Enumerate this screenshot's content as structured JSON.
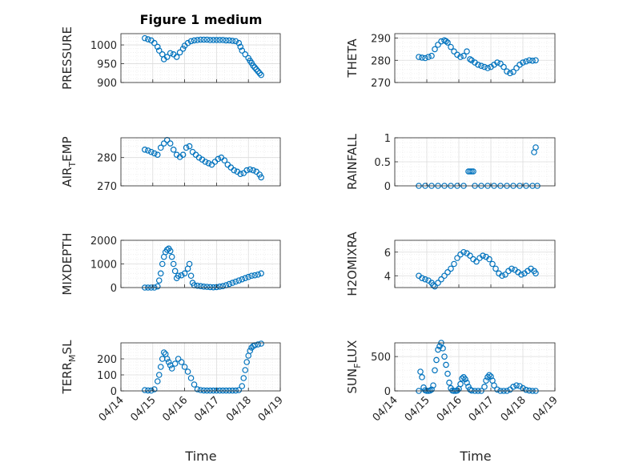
{
  "colors": {
    "marker": "#0072BD",
    "axis": "#262626",
    "grid": "#dcdcdc",
    "minor_grid": "#ececec"
  },
  "chart_data": [
    {
      "type": "scatter",
      "title": "Figure 1 medium",
      "ylabel": "PRESSURE",
      "ylim": [
        900,
        1030
      ],
      "yticks": [
        900,
        950,
        1000
      ],
      "ytick_labels": [
        "900",
        "950",
        "1000"
      ],
      "xlim": [
        0,
        5
      ],
      "x": [
        0.75,
        0.85,
        0.95,
        1.05,
        1.15,
        1.2,
        1.3,
        1.35,
        1.45,
        1.55,
        1.65,
        1.75,
        1.85,
        1.95,
        2.0,
        2.1,
        2.2,
        2.3,
        2.4,
        2.5,
        2.6,
        2.7,
        2.8,
        2.9,
        3.0,
        3.1,
        3.2,
        3.3,
        3.4,
        3.5,
        3.6,
        3.7,
        3.75,
        3.8,
        3.9,
        4.0,
        4.05,
        4.1,
        4.15,
        4.2,
        4.25,
        4.3,
        4.35,
        4.4
      ],
      "y": [
        1018,
        1015,
        1012,
        1005,
        995,
        985,
        975,
        962,
        968,
        978,
        975,
        968,
        980,
        990,
        998,
        1005,
        1010,
        1012,
        1013,
        1014,
        1014,
        1014,
        1013,
        1013,
        1013,
        1013,
        1013,
        1012,
        1012,
        1011,
        1010,
        1005,
        995,
        985,
        975,
        965,
        958,
        952,
        945,
        940,
        935,
        930,
        925,
        920
      ]
    },
    {
      "type": "scatter",
      "ylabel": "THETA",
      "ylim": [
        270,
        292
      ],
      "yticks": [
        270,
        280,
        290
      ],
      "ytick_labels": [
        "270",
        "280",
        "290"
      ],
      "xlim": [
        0,
        5
      ],
      "x": [
        0.75,
        0.85,
        0.95,
        1.05,
        1.15,
        1.25,
        1.35,
        1.45,
        1.55,
        1.6,
        1.65,
        1.75,
        1.85,
        1.95,
        2.05,
        2.15,
        2.25,
        2.35,
        2.4,
        2.5,
        2.6,
        2.7,
        2.8,
        2.9,
        3.0,
        3.1,
        3.2,
        3.3,
        3.4,
        3.5,
        3.6,
        3.7,
        3.8,
        3.9,
        4.0,
        4.1,
        4.2,
        4.3,
        4.4
      ],
      "y": [
        281.5,
        281.2,
        281,
        281.5,
        282,
        285,
        287,
        288.5,
        289,
        288.6,
        288,
        286,
        284,
        282.5,
        281.5,
        282,
        284,
        280.5,
        280,
        279,
        278,
        277.5,
        277,
        276.5,
        277,
        278,
        279,
        278.5,
        277,
        275,
        274.2,
        274.8,
        276.5,
        278,
        279,
        279.5,
        280,
        279.8,
        280
      ]
    },
    {
      "type": "scatter",
      "ylabel": "AIR_TEMP",
      "ylim": [
        270,
        287
      ],
      "yticks": [
        270,
        280
      ],
      "ytick_labels": [
        "270",
        "280"
      ],
      "xlim": [
        0,
        5
      ],
      "x": [
        0.75,
        0.85,
        0.95,
        1.05,
        1.15,
        1.25,
        1.35,
        1.45,
        1.55,
        1.65,
        1.75,
        1.85,
        1.95,
        2.05,
        2.15,
        2.25,
        2.35,
        2.45,
        2.55,
        2.65,
        2.75,
        2.85,
        2.95,
        3.05,
        3.15,
        3.25,
        3.35,
        3.45,
        3.55,
        3.65,
        3.75,
        3.85,
        3.95,
        4.05,
        4.15,
        4.25,
        4.35,
        4.4
      ],
      "y": [
        282.8,
        282.5,
        282,
        281.5,
        281,
        283.5,
        285,
        286.2,
        285,
        282.8,
        281,
        280.2,
        281,
        283.5,
        284,
        282,
        281,
        280,
        279.3,
        278.5,
        278,
        277.5,
        278.5,
        279.5,
        280,
        279,
        277.5,
        276.5,
        275.5,
        275,
        274.2,
        274.5,
        275.5,
        275.8,
        275.5,
        275,
        274,
        273
      ]
    },
    {
      "type": "scatter",
      "ylabel": "RAINFALL",
      "ylim": [
        0,
        1
      ],
      "yticks": [
        0,
        0.5,
        1
      ],
      "ytick_labels": [
        "0",
        "0.5",
        "1"
      ],
      "xlim": [
        0,
        5
      ],
      "x": [
        0.75,
        0.95,
        1.15,
        1.35,
        1.55,
        1.75,
        1.95,
        2.15,
        2.3,
        2.35,
        2.4,
        2.45,
        2.5,
        2.7,
        2.9,
        3.1,
        3.3,
        3.5,
        3.7,
        3.9,
        4.1,
        4.3,
        4.35,
        4.4,
        4.45
      ],
      "y": [
        0,
        0,
        0,
        0,
        0,
        0,
        0,
        0,
        0.3,
        0.3,
        0.3,
        0.3,
        0,
        0,
        0,
        0,
        0,
        0,
        0,
        0,
        0,
        0,
        0.7,
        0.8,
        0
      ]
    },
    {
      "type": "scatter",
      "ylabel": "MIXDEPTH",
      "ylim": [
        0,
        2000
      ],
      "yticks": [
        0,
        1000,
        2000
      ],
      "ytick_labels": [
        "0",
        "1000",
        "2000"
      ],
      "xlim": [
        0,
        5
      ],
      "x": [
        0.75,
        0.85,
        0.95,
        1.05,
        1.15,
        1.2,
        1.25,
        1.3,
        1.35,
        1.4,
        1.45,
        1.5,
        1.55,
        1.6,
        1.65,
        1.7,
        1.75,
        1.8,
        1.9,
        2.0,
        2.1,
        2.15,
        2.2,
        2.25,
        2.3,
        2.4,
        2.5,
        2.6,
        2.7,
        2.8,
        2.9,
        3.0,
        3.1,
        3.2,
        3.3,
        3.4,
        3.5,
        3.6,
        3.7,
        3.8,
        3.9,
        4.0,
        4.1,
        4.2,
        4.3,
        4.4
      ],
      "y": [
        0,
        0,
        0,
        0,
        50,
        300,
        600,
        1000,
        1300,
        1500,
        1600,
        1650,
        1550,
        1300,
        1000,
        700,
        400,
        500,
        520,
        600,
        800,
        1000,
        500,
        200,
        100,
        80,
        60,
        40,
        30,
        20,
        10,
        20,
        40,
        60,
        100,
        150,
        200,
        250,
        300,
        350,
        400,
        450,
        500,
        520,
        550,
        600
      ]
    },
    {
      "type": "scatter",
      "ylabel": "H2OMIXRA",
      "ylim": [
        3,
        7
      ],
      "yticks": [
        4,
        6
      ],
      "ytick_labels": [
        "4",
        "6"
      ],
      "xlim": [
        0,
        5
      ],
      "x": [
        0.75,
        0.85,
        0.95,
        1.05,
        1.15,
        1.2,
        1.25,
        1.35,
        1.45,
        1.55,
        1.65,
        1.75,
        1.85,
        1.95,
        2.05,
        2.15,
        2.25,
        2.35,
        2.45,
        2.55,
        2.65,
        2.75,
        2.85,
        2.95,
        3.05,
        3.15,
        3.25,
        3.35,
        3.45,
        3.55,
        3.65,
        3.75,
        3.85,
        3.95,
        4.05,
        4.15,
        4.25,
        4.35,
        4.4
      ],
      "y": [
        4.0,
        3.8,
        3.7,
        3.6,
        3.4,
        3.2,
        3.1,
        3.4,
        3.7,
        4.0,
        4.3,
        4.6,
        5.0,
        5.5,
        5.8,
        6.0,
        5.9,
        5.7,
        5.4,
        5.2,
        5.5,
        5.7,
        5.6,
        5.4,
        5.0,
        4.6,
        4.2,
        4.0,
        4.1,
        4.4,
        4.6,
        4.5,
        4.3,
        4.1,
        4.2,
        4.4,
        4.6,
        4.4,
        4.2
      ]
    },
    {
      "type": "scatter",
      "ylabel": "TERR_MSL",
      "ylim": [
        0,
        300
      ],
      "yticks": [
        0,
        100,
        200
      ],
      "ytick_labels": [
        "0",
        "100",
        "200"
      ],
      "xlim": [
        0,
        5
      ],
      "x": [
        0.75,
        0.85,
        0.95,
        1.05,
        1.15,
        1.2,
        1.25,
        1.3,
        1.35,
        1.4,
        1.45,
        1.5,
        1.55,
        1.6,
        1.7,
        1.8,
        1.9,
        2.0,
        2.1,
        2.2,
        2.3,
        2.4,
        2.5,
        2.6,
        2.7,
        2.8,
        2.9,
        3.0,
        3.1,
        3.2,
        3.3,
        3.4,
        3.5,
        3.6,
        3.7,
        3.8,
        3.85,
        3.9,
        3.95,
        4.0,
        4.05,
        4.1,
        4.15,
        4.2,
        4.3,
        4.4
      ],
      "y": [
        5,
        3,
        2,
        10,
        60,
        100,
        150,
        200,
        240,
        230,
        200,
        180,
        160,
        140,
        170,
        200,
        180,
        150,
        120,
        80,
        40,
        10,
        5,
        3,
        2,
        2,
        2,
        2,
        2,
        2,
        2,
        2,
        2,
        2,
        5,
        30,
        80,
        130,
        180,
        220,
        250,
        270,
        280,
        285,
        290,
        295
      ]
    },
    {
      "type": "scatter",
      "ylabel": "SUN_FLUX",
      "ylim": [
        0,
        700
      ],
      "yticks": [
        0,
        500
      ],
      "ytick_labels": [
        "0",
        "500"
      ],
      "xlim": [
        0,
        5
      ],
      "x": [
        0.75,
        0.8,
        0.85,
        0.9,
        0.95,
        1.0,
        1.05,
        1.1,
        1.15,
        1.2,
        1.25,
        1.3,
        1.35,
        1.4,
        1.45,
        1.5,
        1.55,
        1.6,
        1.65,
        1.7,
        1.75,
        1.8,
        1.85,
        1.9,
        1.95,
        2.0,
        2.05,
        2.1,
        2.15,
        2.2,
        2.25,
        2.3,
        2.35,
        2.4,
        2.5,
        2.6,
        2.7,
        2.8,
        2.85,
        2.9,
        2.95,
        3.0,
        3.05,
        3.1,
        3.2,
        3.3,
        3.4,
        3.5,
        3.6,
        3.7,
        3.8,
        3.9,
        4.0,
        4.1,
        4.2,
        4.3,
        4.4
      ],
      "y": [
        0,
        280,
        200,
        50,
        10,
        0,
        0,
        5,
        20,
        80,
        300,
        450,
        600,
        650,
        700,
        620,
        500,
        380,
        250,
        120,
        40,
        5,
        0,
        0,
        5,
        30,
        100,
        180,
        200,
        170,
        120,
        60,
        20,
        5,
        0,
        0,
        0,
        60,
        150,
        200,
        230,
        210,
        150,
        80,
        20,
        0,
        0,
        0,
        20,
        60,
        80,
        70,
        40,
        15,
        5,
        0,
        0
      ]
    }
  ],
  "x_axis": {
    "tick_values": [
      0,
      1,
      2,
      3,
      4,
      5
    ],
    "tick_labels": [
      "04/14",
      "04/15",
      "04/16",
      "04/17",
      "04/18",
      "04/19"
    ],
    "label": "Time"
  }
}
